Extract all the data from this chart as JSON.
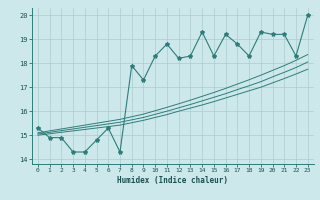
{
  "xlabel": "Humidex (Indice chaleur)",
  "xlim": [
    -0.5,
    23.5
  ],
  "ylim": [
    13.8,
    20.3
  ],
  "yticks": [
    14,
    15,
    16,
    17,
    18,
    19,
    20
  ],
  "xticks": [
    0,
    1,
    2,
    3,
    4,
    5,
    6,
    7,
    8,
    9,
    10,
    11,
    12,
    13,
    14,
    15,
    16,
    17,
    18,
    19,
    20,
    21,
    22,
    23
  ],
  "bg_color": "#cce8eb",
  "grid_color": "#aacccc",
  "line_color": "#2e7d7a",
  "x": [
    0,
    1,
    2,
    3,
    4,
    5,
    6,
    7,
    8,
    9,
    10,
    11,
    12,
    13,
    14,
    15,
    16,
    17,
    18,
    19,
    20,
    21,
    22,
    23
  ],
  "y_jagged": [
    15.3,
    14.9,
    14.9,
    14.3,
    14.3,
    14.8,
    15.3,
    14.3,
    17.9,
    17.3,
    18.3,
    18.8,
    18.2,
    18.3,
    19.3,
    18.3,
    19.2,
    18.8,
    18.3,
    19.3,
    19.2,
    19.2,
    18.3,
    20.0
  ],
  "y_line1": [
    15.0,
    15.06,
    15.12,
    15.18,
    15.24,
    15.3,
    15.36,
    15.42,
    15.52,
    15.62,
    15.74,
    15.86,
    16.0,
    16.13,
    16.26,
    16.4,
    16.55,
    16.7,
    16.85,
    17.0,
    17.18,
    17.36,
    17.55,
    17.75
  ],
  "y_line2": [
    15.05,
    15.12,
    15.19,
    15.26,
    15.33,
    15.4,
    15.47,
    15.54,
    15.64,
    15.74,
    15.87,
    16.0,
    16.14,
    16.28,
    16.43,
    16.58,
    16.73,
    16.9,
    17.06,
    17.23,
    17.43,
    17.62,
    17.82,
    18.05
  ],
  "y_line3": [
    15.1,
    15.18,
    15.26,
    15.34,
    15.42,
    15.5,
    15.58,
    15.66,
    15.77,
    15.88,
    16.02,
    16.16,
    16.31,
    16.46,
    16.62,
    16.78,
    16.95,
    17.13,
    17.31,
    17.5,
    17.7,
    17.9,
    18.12,
    18.36
  ]
}
